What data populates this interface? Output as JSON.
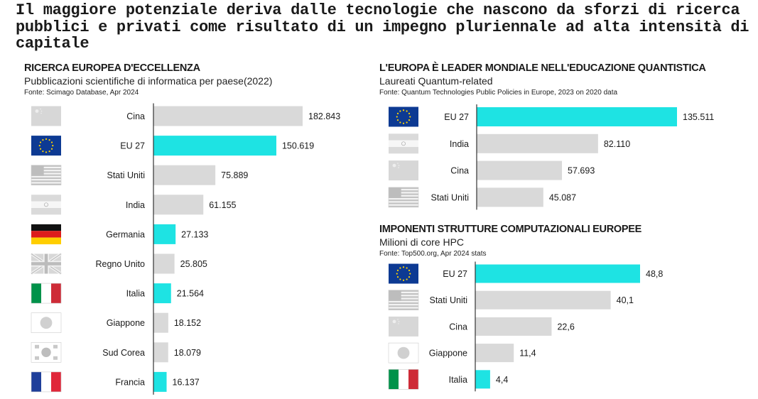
{
  "headline": "Il maggiore potenziale deriva dalle tecnologie che nascono da sforzi di ricerca pubblici e privati come risultato di un impegno pluriennale ad alta intensità di capitale",
  "colors": {
    "highlight": "#1ee3e3",
    "neutral": "#d9d9d9",
    "axis": "#333333"
  },
  "chart_data": [
    {
      "type": "bar",
      "orientation": "horizontal",
      "title": "RICERCA EUROPEA D'ECCELLENZA",
      "subtitle": "Pubblicazioni scientifiche di informatica per paese(2022)",
      "source": "Fonte: Scimago Database, Apr 2024",
      "categories": [
        "Cina",
        "EU 27",
        "Stati Uniti",
        "India",
        "Germania",
        "Regno Unito",
        "Italia",
        "Giappone",
        "Sud Corea",
        "Francia"
      ],
      "flags": [
        "cn",
        "eu",
        "us",
        "in",
        "de",
        "gb",
        "it",
        "jp",
        "kr",
        "fr"
      ],
      "highlighted": [
        false,
        true,
        false,
        false,
        true,
        false,
        true,
        false,
        false,
        true
      ],
      "values": [
        182843,
        150619,
        75889,
        61155,
        27133,
        25805,
        21564,
        18152,
        18079,
        16137
      ],
      "value_labels": [
        "182.843",
        "150.619",
        "75.889",
        "61.155",
        "27.133",
        "25.805",
        "21.564",
        "18.152",
        "18.079",
        "16.137"
      ]
    },
    {
      "type": "bar",
      "orientation": "horizontal",
      "title": "L'EUROPA È LEADER MONDIALE NELL'EDUCAZIONE QUANTISTICA",
      "subtitle": "Laureati Quantum-related",
      "source": "Fonte: Quantum Technologies Public Policies  in Europe, 2023 on 2020 data",
      "categories": [
        "EU 27",
        "India",
        "Cina",
        "Stati Uniti"
      ],
      "flags": [
        "eu",
        "in",
        "cn",
        "us"
      ],
      "highlighted": [
        true,
        false,
        false,
        false
      ],
      "values": [
        135511,
        82110,
        57693,
        45087
      ],
      "value_labels": [
        "135.511",
        "82.110",
        "57.693",
        "45.087"
      ]
    },
    {
      "type": "bar",
      "orientation": "horizontal",
      "title": "IMPONENTI STRUTTURE COMPUTAZIONALI EUROPEE",
      "subtitle": "Milioni di core HPC",
      "source": "Fonte: Top500.org, Apr 2024 stats",
      "categories": [
        "EU 27",
        "Stati Uniti",
        "Cina",
        "Giappone",
        "Italia"
      ],
      "flags": [
        "eu",
        "us",
        "cn",
        "jp",
        "it"
      ],
      "highlighted": [
        true,
        false,
        false,
        false,
        true
      ],
      "values": [
        48.8,
        40.1,
        22.6,
        11.4,
        4.4
      ],
      "value_labels": [
        "48,8",
        "40,1",
        "22,6",
        "11,4",
        "4,4"
      ]
    }
  ]
}
